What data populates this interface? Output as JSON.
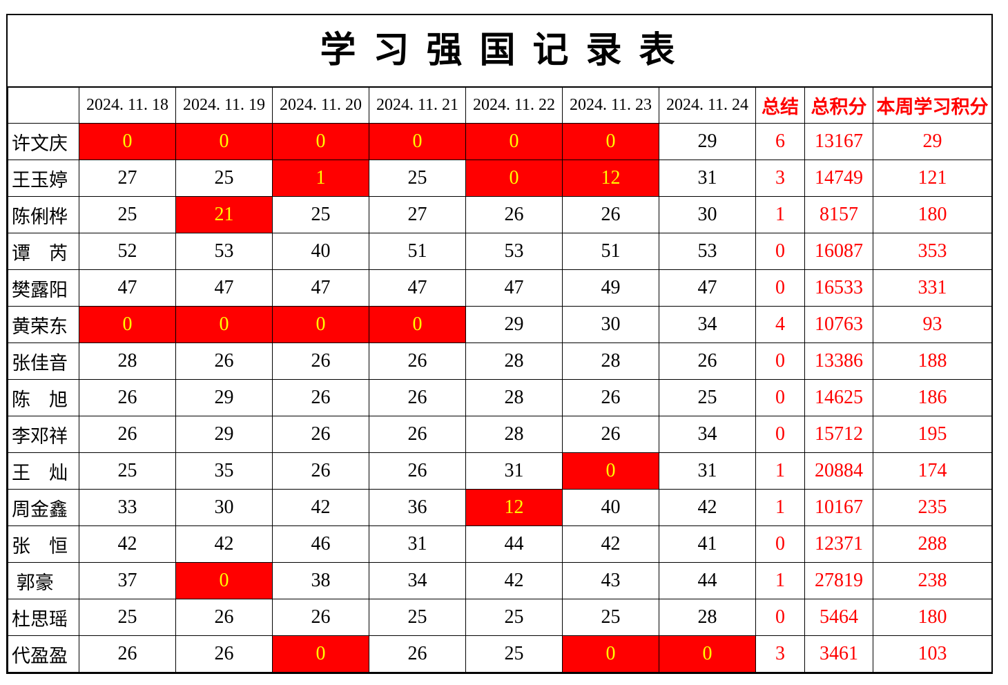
{
  "title": "学 习 强 国 记 录 表",
  "colors": {
    "highlight_bg": "#FF0000",
    "highlight_text": "#FFFF00",
    "accent_text": "#FF0000",
    "text": "#000000",
    "border": "#000000",
    "background": "#FFFFFF"
  },
  "table": {
    "corner_label": "",
    "date_headers": [
      "2024. 11. 18",
      "2024. 11. 19",
      "2024. 11. 20",
      "2024. 11. 21",
      "2024. 11. 22",
      "2024. 11. 23",
      "2024. 11. 24"
    ],
    "summary_headers": [
      "总结",
      "总积分",
      "本周学习积分"
    ],
    "rows": [
      {
        "name": "许文庆",
        "daily": [
          "0",
          "0",
          "0",
          "0",
          "0",
          "0",
          "29"
        ],
        "highlight": [
          0,
          1,
          2,
          3,
          4,
          5
        ],
        "summary": "6",
        "total_points": "13167",
        "week_points": "29"
      },
      {
        "name": "王玉婷",
        "daily": [
          "27",
          "25",
          "1",
          "25",
          "0",
          "12",
          "31"
        ],
        "highlight": [
          2,
          4,
          5
        ],
        "summary": "3",
        "total_points": "14749",
        "week_points": "121"
      },
      {
        "name": "陈俐桦",
        "daily": [
          "25",
          "21",
          "25",
          "27",
          "26",
          "26",
          "30"
        ],
        "highlight": [
          1
        ],
        "summary": "1",
        "total_points": "8157",
        "week_points": "180"
      },
      {
        "name": "谭　芮",
        "daily": [
          "52",
          "53",
          "40",
          "51",
          "53",
          "51",
          "53"
        ],
        "highlight": [],
        "summary": "0",
        "total_points": "16087",
        "week_points": "353"
      },
      {
        "name": "樊露阳",
        "daily": [
          "47",
          "47",
          "47",
          "47",
          "47",
          "49",
          "47"
        ],
        "highlight": [],
        "summary": "0",
        "total_points": "16533",
        "week_points": "331"
      },
      {
        "name": "黄荣东",
        "daily": [
          "0",
          "0",
          "0",
          "0",
          "29",
          "30",
          "34"
        ],
        "highlight": [
          0,
          1,
          2,
          3
        ],
        "summary": "4",
        "total_points": "10763",
        "week_points": "93"
      },
      {
        "name": "张佳音",
        "daily": [
          "28",
          "26",
          "26",
          "26",
          "28",
          "28",
          "26"
        ],
        "highlight": [],
        "summary": "0",
        "total_points": "13386",
        "week_points": "188"
      },
      {
        "name": "陈　旭",
        "daily": [
          "26",
          "29",
          "26",
          "26",
          "28",
          "26",
          "25"
        ],
        "highlight": [],
        "summary": "0",
        "total_points": "14625",
        "week_points": "186"
      },
      {
        "name": "李邓祥",
        "daily": [
          "26",
          "29",
          "26",
          "26",
          "28",
          "26",
          "34"
        ],
        "highlight": [],
        "summary": "0",
        "total_points": "15712",
        "week_points": "195"
      },
      {
        "name": "王　灿",
        "daily": [
          "25",
          "35",
          "26",
          "26",
          "31",
          "0",
          "31"
        ],
        "highlight": [
          5
        ],
        "summary": "1",
        "total_points": "20884",
        "week_points": "174"
      },
      {
        "name": "周金鑫",
        "daily": [
          "33",
          "30",
          "42",
          "36",
          "12",
          "40",
          "42"
        ],
        "highlight": [
          4
        ],
        "summary": "1",
        "total_points": "10167",
        "week_points": "235"
      },
      {
        "name": "张　恒",
        "daily": [
          "42",
          "42",
          "46",
          "31",
          "44",
          "42",
          "41"
        ],
        "highlight": [],
        "summary": "0",
        "total_points": "12371",
        "week_points": "288"
      },
      {
        "name": " 郭豪",
        "daily": [
          "37",
          "0",
          "38",
          "34",
          "42",
          "43",
          "44"
        ],
        "highlight": [
          1
        ],
        "summary": "1",
        "total_points": "27819",
        "week_points": "238"
      },
      {
        "name": "杜思瑶",
        "daily": [
          "25",
          "26",
          "26",
          "25",
          "25",
          "25",
          "28"
        ],
        "highlight": [],
        "summary": "0",
        "total_points": "5464",
        "week_points": "180"
      },
      {
        "name": "代盈盈",
        "daily": [
          "26",
          "26",
          "0",
          "26",
          "25",
          "0",
          "0"
        ],
        "highlight": [
          2,
          5,
          6
        ],
        "summary": "3",
        "total_points": "3461",
        "week_points": "103"
      }
    ]
  }
}
